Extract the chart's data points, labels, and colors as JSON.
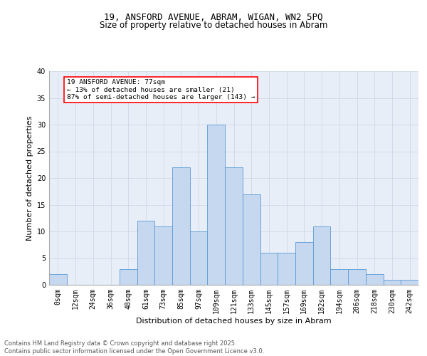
{
  "title_line1": "19, ANSFORD AVENUE, ABRAM, WIGAN, WN2 5PQ",
  "title_line2": "Size of property relative to detached houses in Abram",
  "xlabel": "Distribution of detached houses by size in Abram",
  "ylabel": "Number of detached properties",
  "bins": [
    "0sqm",
    "12sqm",
    "24sqm",
    "36sqm",
    "48sqm",
    "61sqm",
    "73sqm",
    "85sqm",
    "97sqm",
    "109sqm",
    "121sqm",
    "133sqm",
    "145sqm",
    "157sqm",
    "169sqm",
    "182sqm",
    "194sqm",
    "206sqm",
    "218sqm",
    "230sqm",
    "242sqm"
  ],
  "values": [
    2,
    0,
    0,
    0,
    3,
    12,
    11,
    22,
    10,
    30,
    22,
    17,
    6,
    6,
    8,
    11,
    3,
    3,
    2,
    1,
    1
  ],
  "bar_color": "#c5d8f0",
  "bar_edge_color": "#5b9bd5",
  "highlight_bin_index": 6,
  "annotation_text": "19 ANSFORD AVENUE: 77sqm\n← 13% of detached houses are smaller (21)\n87% of semi-detached houses are larger (143) →",
  "annotation_box_color": "white",
  "annotation_box_edge_color": "red",
  "grid_color": "#d0d8e8",
  "background_color": "#e8eef8",
  "ylim": [
    0,
    40
  ],
  "yticks": [
    0,
    5,
    10,
    15,
    20,
    25,
    30,
    35,
    40
  ],
  "footer_text": "Contains HM Land Registry data © Crown copyright and database right 2025.\nContains public sector information licensed under the Open Government Licence v3.0.",
  "title_fontsize": 9,
  "subtitle_fontsize": 8.5,
  "axis_label_fontsize": 8,
  "tick_fontsize": 7,
  "annotation_fontsize": 6.8,
  "footer_fontsize": 6
}
